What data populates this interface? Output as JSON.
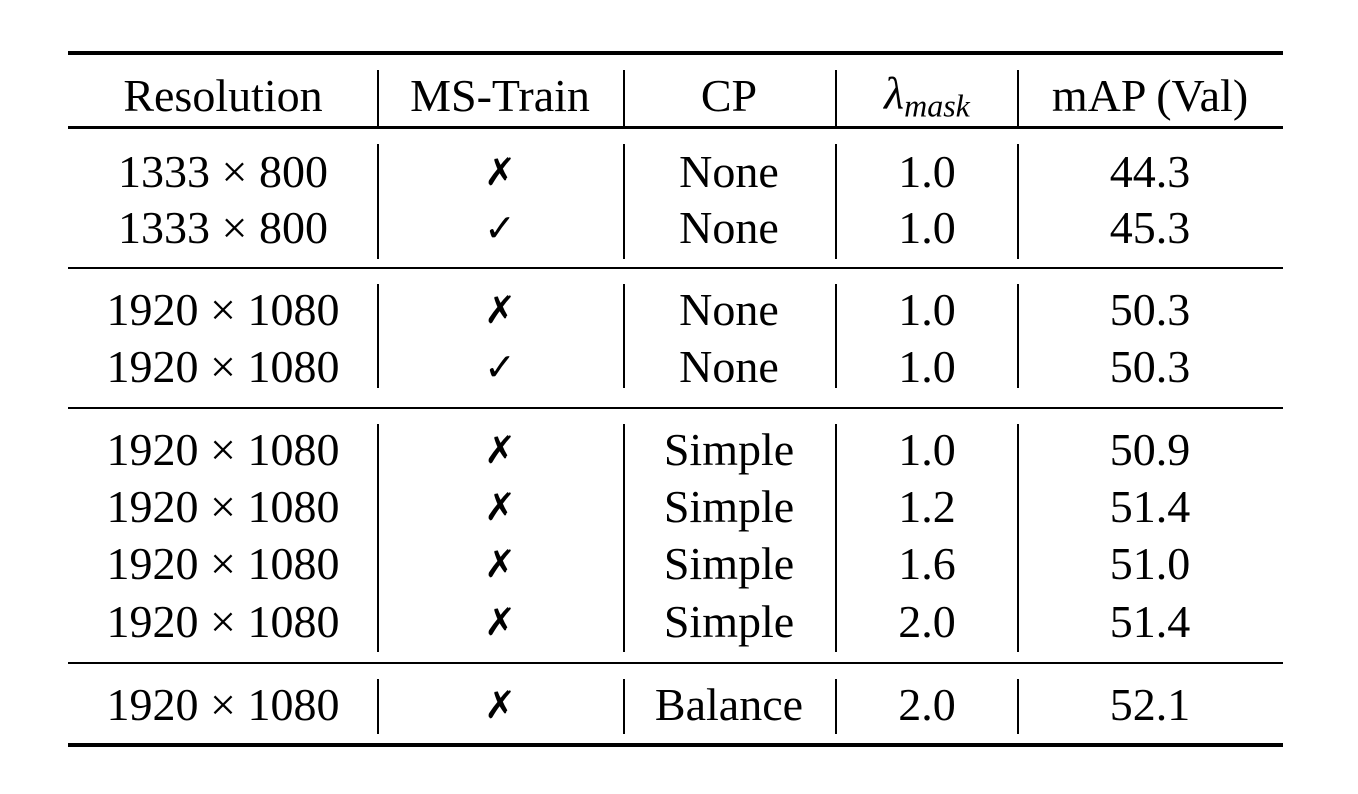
{
  "table": {
    "headers": {
      "resolution": "Resolution",
      "ms_train": "MS-Train",
      "cp": "CP",
      "lambda_symbol": "λ",
      "lambda_sub": "mask",
      "map": "mAP (Val)"
    },
    "groups": [
      [
        {
          "resolution": "1333 × 800",
          "ms_train": "✗",
          "cp": "None",
          "lambda_mask": "1.0",
          "map": "44.3"
        },
        {
          "resolution": "1333 × 800",
          "ms_train": "✓",
          "cp": "None",
          "lambda_mask": "1.0",
          "map": "45.3"
        }
      ],
      [
        {
          "resolution": "1920 × 1080",
          "ms_train": "✗",
          "cp": "None",
          "lambda_mask": "1.0",
          "map": "50.3"
        },
        {
          "resolution": "1920 × 1080",
          "ms_train": "✓",
          "cp": "None",
          "lambda_mask": "1.0",
          "map": "50.3"
        }
      ],
      [
        {
          "resolution": "1920 × 1080",
          "ms_train": "✗",
          "cp": "Simple",
          "lambda_mask": "1.0",
          "map": "50.9"
        },
        {
          "resolution": "1920 × 1080",
          "ms_train": "✗",
          "cp": "Simple",
          "lambda_mask": "1.2",
          "map": "51.4"
        },
        {
          "resolution": "1920 × 1080",
          "ms_train": "✗",
          "cp": "Simple",
          "lambda_mask": "1.6",
          "map": "51.0"
        },
        {
          "resolution": "1920 × 1080",
          "ms_train": "✗",
          "cp": "Simple",
          "lambda_mask": "2.0",
          "map": "51.4"
        }
      ],
      [
        {
          "resolution": "1920 × 1080",
          "ms_train": "✗",
          "cp": "Balance",
          "lambda_mask": "2.0",
          "map": "52.1"
        }
      ]
    ]
  }
}
